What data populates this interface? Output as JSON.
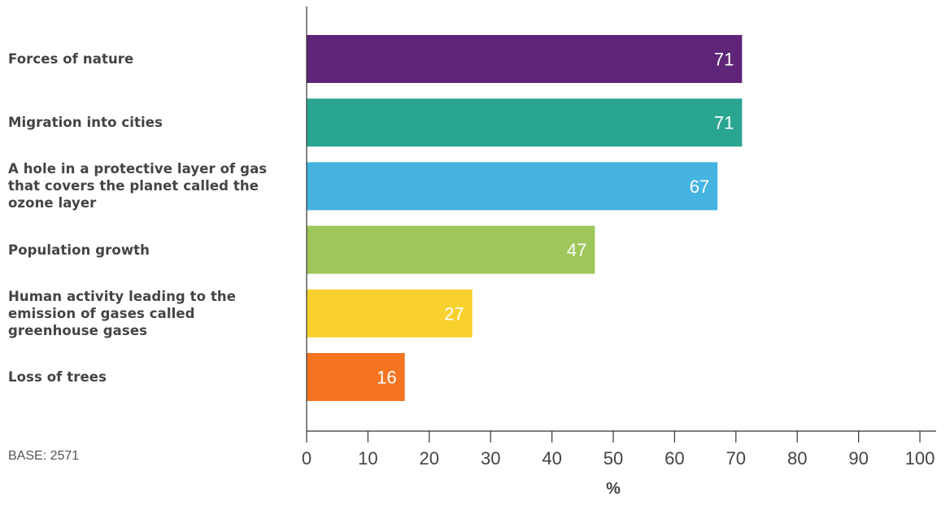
{
  "chart_data": {
    "type": "bar",
    "orientation": "horizontal",
    "categories": [
      "Forces of nature",
      "Migration into cities",
      "A hole in a protective layer of gas that covers the planet called the ozone layer",
      "Population growth",
      "Human activity leading to the emission of gases called greenhouse gases",
      "Loss of trees"
    ],
    "values": [
      71,
      71,
      67,
      47,
      27,
      16
    ],
    "data_labels": [
      "71",
      "71",
      "67",
      "47",
      "27",
      "16"
    ],
    "colors": [
      "#5f2578",
      "#2aa592",
      "#45b4e0",
      "#9dc75a",
      "#f8d12e",
      "#f47421"
    ],
    "xlabel": "%",
    "ylabel": "",
    "xlim": [
      0,
      100
    ],
    "x_ticks": [
      0,
      10,
      20,
      30,
      40,
      50,
      60,
      70,
      80,
      90,
      100
    ],
    "x_tick_labels": [
      "0",
      "10",
      "20",
      "30",
      "40",
      "50",
      "60",
      "70",
      "80",
      "90",
      "100"
    ],
    "grid": false,
    "legend": "none",
    "value_label_color": "#ffffff",
    "axis_color": "#333333",
    "label_color": "#444444"
  },
  "footnote": "BASE: 2571"
}
